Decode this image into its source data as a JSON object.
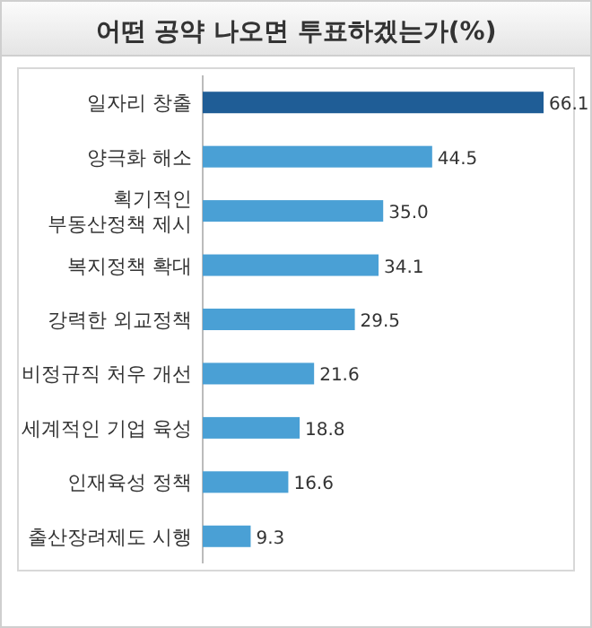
{
  "chart_data": {
    "type": "bar",
    "orientation": "horizontal",
    "title": "어떤 공약 나오면 투표하겠는가(%)",
    "categories": [
      "일자리 창출",
      "양극화 해소",
      "획기적인 부동산정책 제시",
      "복지정책 확대",
      "강력한 외교정책",
      "비정규직 처우 개선",
      "세계적인 기업 육성",
      "인재육성 정책",
      "출산장려제도 시행"
    ],
    "values": [
      66.1,
      44.5,
      35.0,
      34.1,
      29.5,
      21.6,
      18.8,
      16.6,
      9.3
    ],
    "value_labels": [
      "66.1",
      "44.5",
      "35.0",
      "34.1",
      "29.5",
      "21.6",
      "18.8",
      "16.6",
      "9.3"
    ],
    "colors": [
      "#1f5d96",
      "#4aa0d5",
      "#4aa0d5",
      "#4aa0d5",
      "#4aa0d5",
      "#4aa0d5",
      "#4aa0d5",
      "#4aa0d5",
      "#4aa0d5"
    ],
    "data_labels": true
  }
}
